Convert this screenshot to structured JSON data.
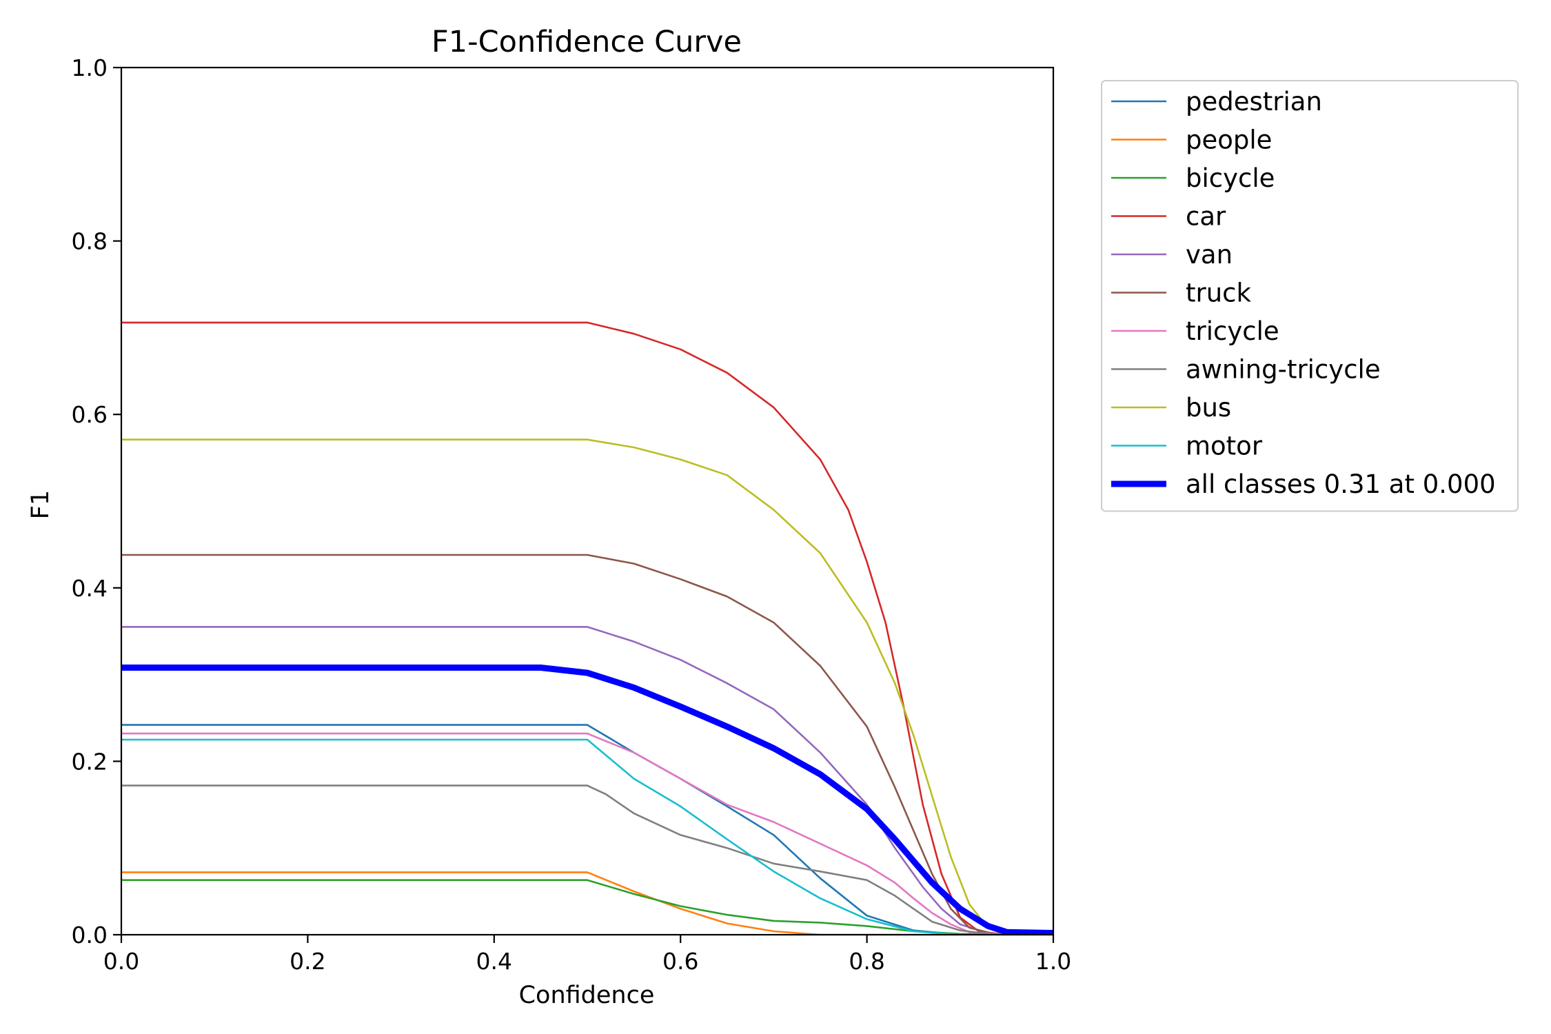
{
  "chart_data": {
    "type": "line",
    "title": "F1-Confidence Curve",
    "xlabel": "Confidence",
    "ylabel": "F1",
    "xlim": [
      0.0,
      1.0
    ],
    "ylim": [
      0.0,
      1.0
    ],
    "xticks": [
      "0.0",
      "0.2",
      "0.4",
      "0.6",
      "0.8",
      "1.0"
    ],
    "yticks": [
      "0.0",
      "0.2",
      "0.4",
      "0.6",
      "0.8",
      "1.0"
    ],
    "grid": false,
    "legend_position": "outside right, top",
    "series": [
      {
        "name": "pedestrian",
        "color": "#1f77b4",
        "width": "thin",
        "points": [
          [
            0,
            0.242
          ],
          [
            0.5,
            0.242
          ],
          [
            0.55,
            0.21
          ],
          [
            0.6,
            0.18
          ],
          [
            0.65,
            0.148
          ],
          [
            0.7,
            0.115
          ],
          [
            0.75,
            0.065
          ],
          [
            0.8,
            0.022
          ],
          [
            0.85,
            0.005
          ],
          [
            0.9,
            0.0
          ],
          [
            1.0,
            0.0
          ]
        ]
      },
      {
        "name": "people",
        "color": "#ff7f0e",
        "width": "thin",
        "points": [
          [
            0,
            0.072
          ],
          [
            0.5,
            0.072
          ],
          [
            0.55,
            0.05
          ],
          [
            0.6,
            0.03
          ],
          [
            0.65,
            0.013
          ],
          [
            0.7,
            0.004
          ],
          [
            0.75,
            0.0
          ],
          [
            1.0,
            0.0
          ]
        ]
      },
      {
        "name": "bicycle",
        "color": "#2ca02c",
        "width": "thin",
        "points": [
          [
            0,
            0.063
          ],
          [
            0.5,
            0.063
          ],
          [
            0.55,
            0.047
          ],
          [
            0.6,
            0.033
          ],
          [
            0.65,
            0.023
          ],
          [
            0.7,
            0.016
          ],
          [
            0.75,
            0.014
          ],
          [
            0.8,
            0.01
          ],
          [
            0.85,
            0.004
          ],
          [
            0.9,
            0.001
          ],
          [
            1.0,
            0.0
          ]
        ]
      },
      {
        "name": "car",
        "color": "#d62728",
        "width": "thin",
        "points": [
          [
            0,
            0.706
          ],
          [
            0.5,
            0.706
          ],
          [
            0.55,
            0.693
          ],
          [
            0.6,
            0.675
          ],
          [
            0.65,
            0.648
          ],
          [
            0.7,
            0.608
          ],
          [
            0.75,
            0.548
          ],
          [
            0.78,
            0.49
          ],
          [
            0.8,
            0.43
          ],
          [
            0.82,
            0.36
          ],
          [
            0.84,
            0.26
          ],
          [
            0.86,
            0.15
          ],
          [
            0.88,
            0.07
          ],
          [
            0.9,
            0.02
          ],
          [
            0.92,
            0.004
          ],
          [
            0.95,
            0.0
          ],
          [
            1.0,
            0.0
          ]
        ]
      },
      {
        "name": "van",
        "color": "#9467bd",
        "width": "thin",
        "points": [
          [
            0,
            0.355
          ],
          [
            0.5,
            0.355
          ],
          [
            0.55,
            0.338
          ],
          [
            0.6,
            0.317
          ],
          [
            0.65,
            0.29
          ],
          [
            0.7,
            0.26
          ],
          [
            0.75,
            0.21
          ],
          [
            0.8,
            0.15
          ],
          [
            0.83,
            0.1
          ],
          [
            0.86,
            0.055
          ],
          [
            0.88,
            0.03
          ],
          [
            0.9,
            0.012
          ],
          [
            0.93,
            0.002
          ],
          [
            0.95,
            0.0
          ],
          [
            1.0,
            0.0
          ]
        ]
      },
      {
        "name": "truck",
        "color": "#8c564b",
        "width": "thin",
        "points": [
          [
            0,
            0.438
          ],
          [
            0.5,
            0.438
          ],
          [
            0.55,
            0.428
          ],
          [
            0.6,
            0.41
          ],
          [
            0.65,
            0.39
          ],
          [
            0.7,
            0.36
          ],
          [
            0.75,
            0.31
          ],
          [
            0.8,
            0.24
          ],
          [
            0.83,
            0.17
          ],
          [
            0.85,
            0.12
          ],
          [
            0.87,
            0.07
          ],
          [
            0.89,
            0.03
          ],
          [
            0.91,
            0.008
          ],
          [
            0.94,
            0.0
          ],
          [
            1.0,
            0.0
          ]
        ]
      },
      {
        "name": "tricycle",
        "color": "#e377c2",
        "width": "thin",
        "points": [
          [
            0,
            0.232
          ],
          [
            0.5,
            0.232
          ],
          [
            0.55,
            0.21
          ],
          [
            0.6,
            0.18
          ],
          [
            0.65,
            0.15
          ],
          [
            0.7,
            0.13
          ],
          [
            0.75,
            0.105
          ],
          [
            0.8,
            0.08
          ],
          [
            0.83,
            0.06
          ],
          [
            0.85,
            0.042
          ],
          [
            0.87,
            0.025
          ],
          [
            0.89,
            0.012
          ],
          [
            0.91,
            0.003
          ],
          [
            0.95,
            0.0
          ],
          [
            1.0,
            0.0
          ]
        ]
      },
      {
        "name": "awning-tricycle",
        "color": "#7f7f7f",
        "width": "thin",
        "points": [
          [
            0,
            0.172
          ],
          [
            0.5,
            0.172
          ],
          [
            0.52,
            0.162
          ],
          [
            0.55,
            0.14
          ],
          [
            0.6,
            0.115
          ],
          [
            0.65,
            0.1
          ],
          [
            0.7,
            0.082
          ],
          [
            0.75,
            0.073
          ],
          [
            0.8,
            0.063
          ],
          [
            0.83,
            0.045
          ],
          [
            0.85,
            0.03
          ],
          [
            0.87,
            0.015
          ],
          [
            0.9,
            0.005
          ],
          [
            0.93,
            0.001
          ],
          [
            1.0,
            0.0
          ]
        ]
      },
      {
        "name": "bus",
        "color": "#bcbd22",
        "width": "thin",
        "points": [
          [
            0,
            0.571
          ],
          [
            0.5,
            0.571
          ],
          [
            0.55,
            0.562
          ],
          [
            0.6,
            0.548
          ],
          [
            0.65,
            0.53
          ],
          [
            0.7,
            0.49
          ],
          [
            0.75,
            0.44
          ],
          [
            0.8,
            0.36
          ],
          [
            0.83,
            0.29
          ],
          [
            0.85,
            0.23
          ],
          [
            0.87,
            0.16
          ],
          [
            0.89,
            0.09
          ],
          [
            0.91,
            0.035
          ],
          [
            0.93,
            0.008
          ],
          [
            0.95,
            0.0
          ],
          [
            1.0,
            0.0
          ]
        ]
      },
      {
        "name": "motor",
        "color": "#17becf",
        "width": "thin",
        "points": [
          [
            0,
            0.225
          ],
          [
            0.5,
            0.225
          ],
          [
            0.55,
            0.18
          ],
          [
            0.6,
            0.148
          ],
          [
            0.65,
            0.11
          ],
          [
            0.7,
            0.073
          ],
          [
            0.75,
            0.042
          ],
          [
            0.8,
            0.018
          ],
          [
            0.85,
            0.004
          ],
          [
            0.9,
            0.0
          ],
          [
            1.0,
            0.0
          ]
        ]
      },
      {
        "name": "all classes 0.31 at 0.000",
        "color": "#0000ff",
        "width": "thick",
        "points": [
          [
            0,
            0.308
          ],
          [
            0.45,
            0.308
          ],
          [
            0.5,
            0.302
          ],
          [
            0.55,
            0.285
          ],
          [
            0.6,
            0.263
          ],
          [
            0.65,
            0.24
          ],
          [
            0.7,
            0.215
          ],
          [
            0.75,
            0.185
          ],
          [
            0.8,
            0.145
          ],
          [
            0.83,
            0.11
          ],
          [
            0.85,
            0.085
          ],
          [
            0.87,
            0.06
          ],
          [
            0.9,
            0.03
          ],
          [
            0.93,
            0.01
          ],
          [
            0.95,
            0.003
          ],
          [
            1.0,
            0.002
          ]
        ]
      }
    ]
  }
}
